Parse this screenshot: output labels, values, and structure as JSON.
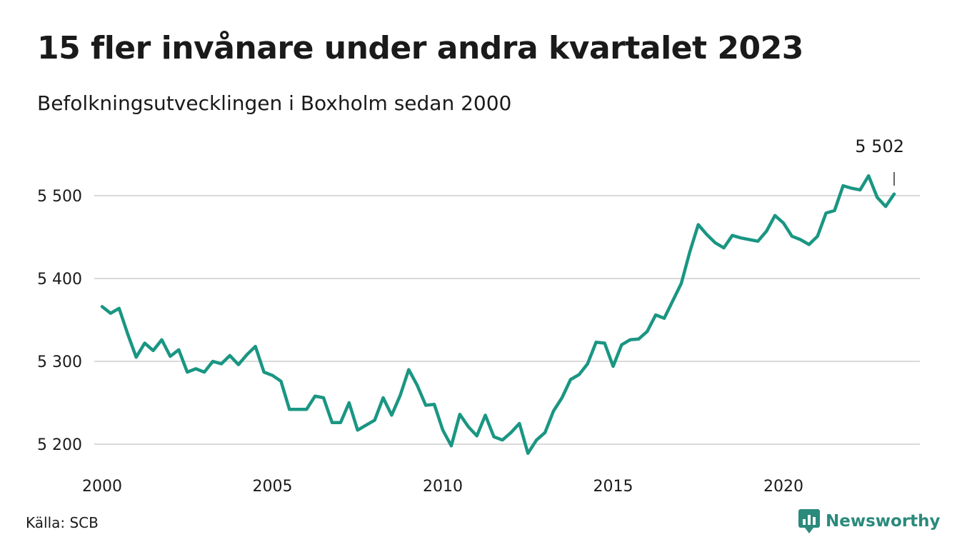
{
  "title": "15 fler invånare under andra kvartalet 2023",
  "subtitle": "Befolkningsutvecklingen i Boxholm sedan 2000",
  "source": "Källa: SCB",
  "brand": {
    "name": "Newsworthy",
    "icon": "newsworthy-logo-icon",
    "color": "#2a8a7c"
  },
  "colors": {
    "line": "#1a9683",
    "grid": "#d9d9d9"
  },
  "chart_data": {
    "type": "line",
    "x_start": 2000.0,
    "x_step": 0.25,
    "values": [
      5366,
      5358,
      5364,
      5333,
      5305,
      5322,
      5313,
      5326,
      5306,
      5314,
      5287,
      5291,
      5287,
      5300,
      5297,
      5307,
      5296,
      5308,
      5318,
      5287,
      5283,
      5276,
      5242,
      5242,
      5242,
      5258,
      5256,
      5226,
      5226,
      5250,
      5217,
      5223,
      5229,
      5256,
      5235,
      5259,
      5290,
      5271,
      5247,
      5248,
      5217,
      5198,
      5236,
      5221,
      5210,
      5235,
      5209,
      5205,
      5214,
      5225,
      5189,
      5205,
      5214,
      5240,
      5256,
      5278,
      5284,
      5297,
      5323,
      5322,
      5294,
      5320,
      5326,
      5327,
      5336,
      5356,
      5352,
      5373,
      5394,
      5432,
      5465,
      5453,
      5443,
      5437,
      5452,
      5449,
      5447,
      5445,
      5457,
      5476,
      5467,
      5451,
      5447,
      5441,
      5451,
      5479,
      5482,
      5512,
      5509,
      5507,
      5524,
      5498,
      5487,
      5502
    ],
    "x_ticks": [
      2000,
      2005,
      2010,
      2015,
      2020
    ],
    "x_tick_labels": [
      "2000",
      "2005",
      "2010",
      "2015",
      "2020"
    ],
    "y_ticks": [
      5200,
      5300,
      5400,
      5500
    ],
    "y_tick_labels": [
      "5 200",
      "5 300",
      "5 400",
      "5 500"
    ],
    "xlim": [
      2000,
      2023.25
    ],
    "ylim": [
      5190,
      5525
    ],
    "grid": "horizontal",
    "end_label": "5 502"
  }
}
